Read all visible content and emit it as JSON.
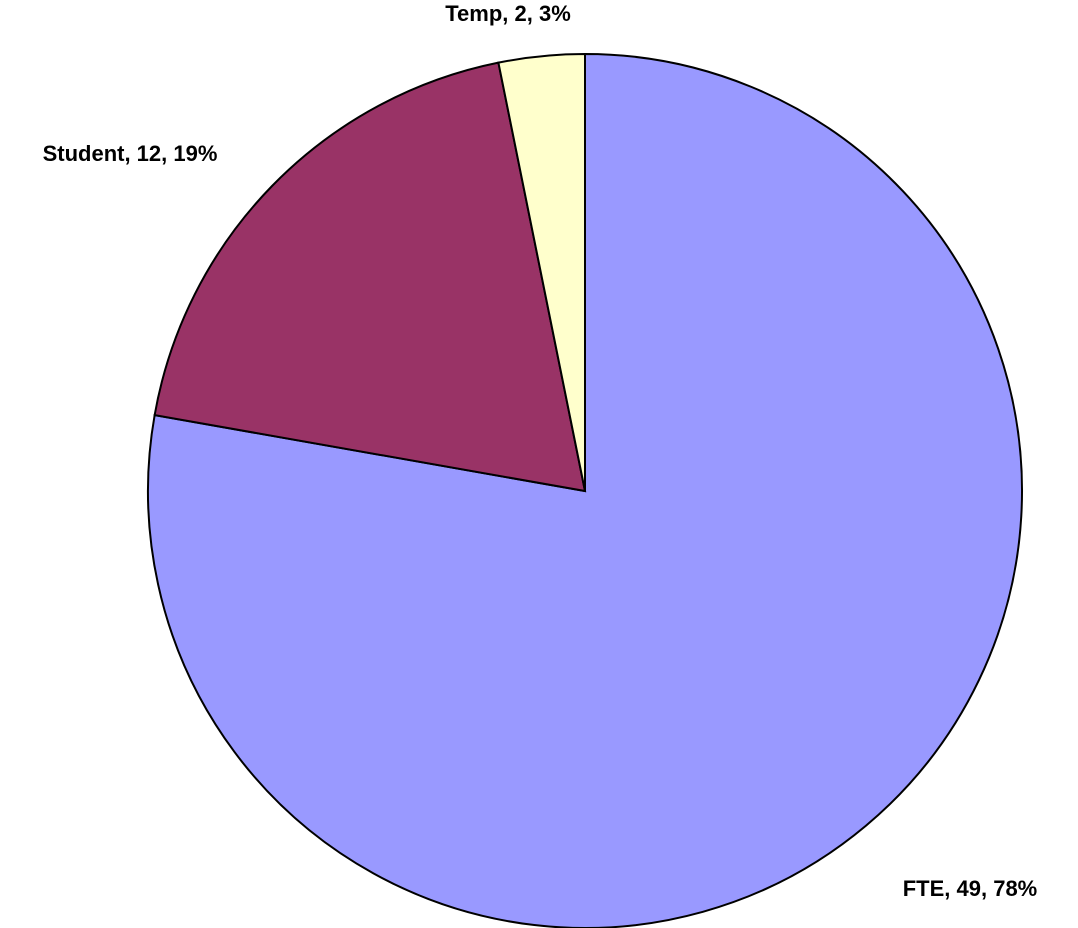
{
  "chart_data": {
    "type": "pie",
    "values": [
      49,
      12,
      2
    ],
    "value_labels": [
      "FTE, 49, 78%",
      "Student, 12, 19%",
      "Temp, 2, 3%"
    ],
    "colors": [
      "#9999ff",
      "#993366",
      "#ffffcc"
    ]
  }
}
